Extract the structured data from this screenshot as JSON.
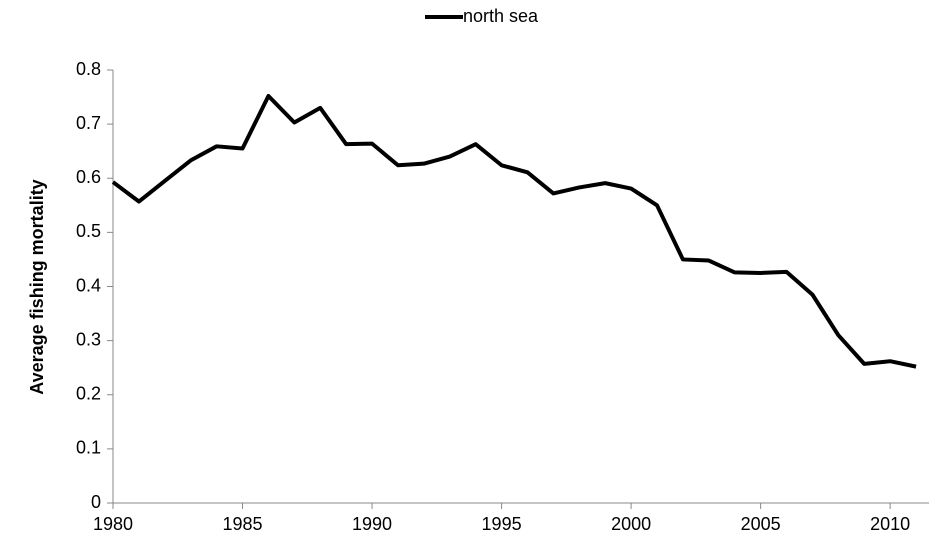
{
  "chart_data": {
    "type": "line",
    "y_label": "Average fishing mortality",
    "x": [
      1980,
      1981,
      1982,
      1983,
      1984,
      1985,
      1986,
      1987,
      1988,
      1989,
      1990,
      1991,
      1992,
      1993,
      1994,
      1995,
      1996,
      1997,
      1998,
      1999,
      2000,
      2001,
      2002,
      2003,
      2004,
      2005,
      2006,
      2007,
      2008,
      2009,
      2010,
      2011
    ],
    "series": [
      {
        "name": "north sea",
        "color": "#000000",
        "values": [
          0.593,
          0.557,
          0.595,
          0.633,
          0.659,
          0.655,
          0.752,
          0.703,
          0.73,
          0.663,
          0.664,
          0.624,
          0.627,
          0.64,
          0.663,
          0.624,
          0.611,
          0.572,
          0.583,
          0.591,
          0.581,
          0.55,
          0.45,
          0.448,
          0.426,
          0.425,
          0.427,
          0.385,
          0.31,
          0.257,
          0.262,
          0.252
        ]
      }
    ],
    "xlim": [
      1980,
      2011.5
    ],
    "xticks": [
      1980,
      1985,
      1990,
      1995,
      2000,
      2005,
      2010
    ],
    "ylim": [
      0,
      0.8
    ],
    "yticks": [
      0,
      0.1,
      0.2,
      0.3,
      0.4,
      0.5,
      0.6,
      0.7,
      0.8
    ],
    "legend": "top",
    "grid": false
  }
}
